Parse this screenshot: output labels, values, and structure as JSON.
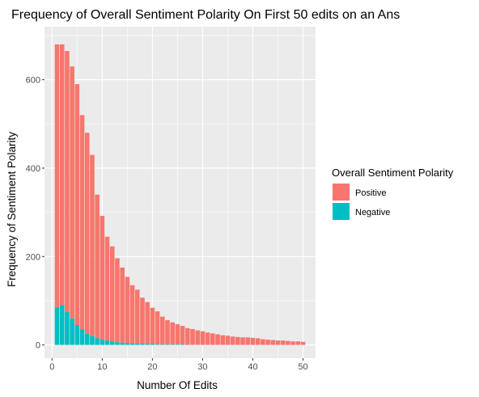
{
  "chart_data": {
    "type": "bar",
    "stacked": true,
    "title": "Frequency of Overall Sentiment Polarity On First 50 edits on an Ans",
    "xlabel": "Number Of Edits",
    "ylabel": "Frequency of Sentiment Polarity",
    "xlim": [
      -1.5,
      52.5
    ],
    "ylim": [
      -30,
      720
    ],
    "x_ticks": [
      0,
      10,
      20,
      30,
      40,
      50
    ],
    "y_ticks": [
      0,
      200,
      400,
      600
    ],
    "grid": true,
    "legend": {
      "title": "Overall Sentiment Polarity",
      "position": "right"
    },
    "x": [
      1,
      2,
      3,
      4,
      5,
      6,
      7,
      8,
      9,
      10,
      11,
      12,
      13,
      14,
      15,
      16,
      17,
      18,
      19,
      20,
      21,
      22,
      23,
      24,
      25,
      26,
      27,
      28,
      29,
      30,
      31,
      32,
      33,
      34,
      35,
      36,
      37,
      38,
      39,
      40,
      41,
      42,
      43,
      44,
      45,
      46,
      47,
      48,
      49,
      50
    ],
    "series": [
      {
        "name": "Negative",
        "color": "#00BFC4",
        "values": [
          85,
          90,
          75,
          60,
          45,
          35,
          25,
          20,
          15,
          12,
          10,
          8,
          6,
          5,
          4,
          3,
          3,
          2,
          2,
          2,
          1,
          1,
          1,
          1,
          1,
          1,
          0,
          0,
          0,
          0,
          0,
          0,
          0,
          0,
          0,
          0,
          0,
          0,
          0,
          0,
          0,
          0,
          0,
          0,
          0,
          0,
          0,
          0,
          0,
          0
        ]
      },
      {
        "name": "Positive",
        "color": "#F8766D",
        "values": [
          595,
          590,
          590,
          570,
          545,
          485,
          455,
          410,
          325,
          280,
          235,
          215,
          190,
          170,
          150,
          132,
          122,
          105,
          95,
          82,
          75,
          63,
          55,
          50,
          46,
          42,
          38,
          36,
          33,
          31,
          28,
          26,
          24,
          22,
          21,
          19,
          18,
          17,
          17,
          16,
          15,
          13,
          12,
          11,
          10,
          10,
          9,
          8,
          8,
          7
        ]
      }
    ]
  },
  "legend_items": [
    {
      "label": "Positive",
      "color": "#F8766D"
    },
    {
      "label": "Negative",
      "color": "#00BFC4"
    }
  ]
}
